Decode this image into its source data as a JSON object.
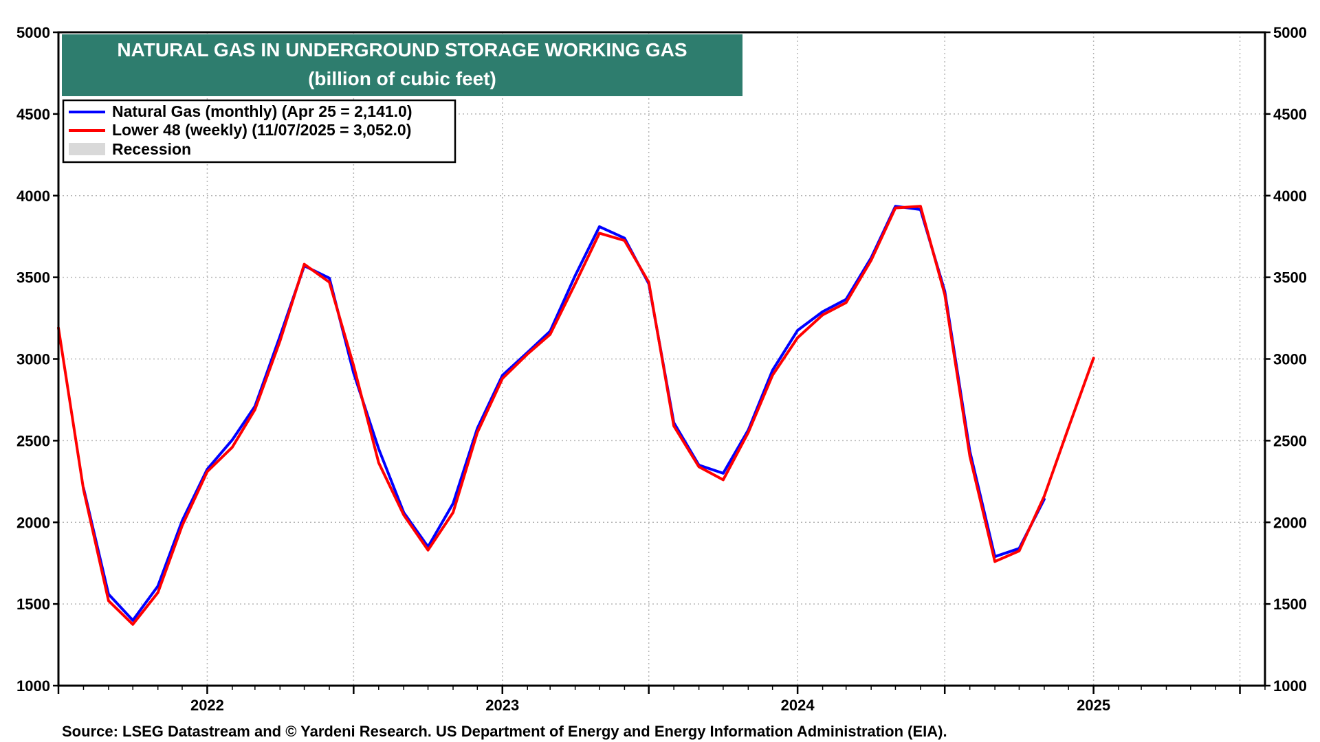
{
  "chart_data": {
    "type": "line",
    "title": "NATURAL GAS IN UNDERGROUND STORAGE WORKING GAS",
    "subtitle": "(billion of cubic feet)",
    "ylim": [
      1000,
      5000
    ],
    "y_ticks": [
      1000,
      1500,
      2000,
      2500,
      3000,
      3500,
      4000,
      4500,
      5000
    ],
    "y_tick_labels": [
      "1000",
      "1500",
      "2000",
      "2500",
      "3000",
      "3500",
      "4000",
      "4500",
      "5000"
    ],
    "xlim": [
      "2021-07-01",
      "2025-08-01"
    ],
    "x_year_labels": [
      {
        "label": "2022",
        "date": "2022-01-01"
      },
      {
        "label": "2023",
        "date": "2023-01-01"
      },
      {
        "label": "2024",
        "date": "2024-01-01"
      },
      {
        "label": "2025",
        "date": "2025-01-01"
      }
    ],
    "x_grid_dates": [
      "2021-07-01",
      "2022-01-01",
      "2022-07-01",
      "2023-01-01",
      "2023-07-01",
      "2024-01-01",
      "2024-07-01",
      "2025-01-01",
      "2025-07-01"
    ],
    "grid": true,
    "legend_position": "top-left",
    "series": [
      {
        "name": "Natural Gas (monthly) (Apr 25 = 2,141.0)",
        "color": "#0000ff",
        "points": [
          [
            "2021-08-01",
            2210
          ],
          [
            "2021-09-01",
            1560
          ],
          [
            "2021-10-01",
            1400
          ],
          [
            "2021-11-01",
            1610
          ],
          [
            "2021-12-01",
            2010
          ],
          [
            "2022-01-01",
            2325
          ],
          [
            "2022-02-01",
            2505
          ],
          [
            "2022-03-01",
            2710
          ],
          [
            "2022-04-01",
            3140
          ],
          [
            "2022-05-01",
            3570
          ],
          [
            "2022-06-01",
            3495
          ],
          [
            "2022-07-01",
            2915
          ],
          [
            "2022-08-01",
            2450
          ],
          [
            "2022-09-01",
            2060
          ],
          [
            "2022-10-01",
            1850
          ],
          [
            "2022-11-01",
            2115
          ],
          [
            "2022-12-01",
            2575
          ],
          [
            "2023-01-01",
            2900
          ],
          [
            "2023-02-01",
            3040
          ],
          [
            "2023-03-01",
            3170
          ],
          [
            "2023-04-01",
            3510
          ],
          [
            "2023-05-01",
            3810
          ],
          [
            "2023-06-01",
            3740
          ],
          [
            "2023-07-01",
            3460
          ],
          [
            "2023-08-01",
            2610
          ],
          [
            "2023-09-01",
            2350
          ],
          [
            "2023-10-01",
            2300
          ],
          [
            "2023-11-01",
            2565
          ],
          [
            "2023-12-01",
            2930
          ],
          [
            "2024-01-01",
            3175
          ],
          [
            "2024-02-01",
            3290
          ],
          [
            "2024-03-01",
            3365
          ],
          [
            "2024-04-01",
            3620
          ],
          [
            "2024-05-01",
            3935
          ],
          [
            "2024-06-01",
            3915
          ],
          [
            "2024-07-01",
            3415
          ],
          [
            "2024-08-01",
            2435
          ],
          [
            "2024-09-01",
            1790
          ],
          [
            "2024-10-01",
            1840
          ],
          [
            "2024-11-01",
            2141
          ]
        ]
      },
      {
        "name": "Lower 48 (weekly) (11/07/2025 = 3,052.0)",
        "color": "#ff0000",
        "points": [
          [
            "2021-07-01",
            3190
          ],
          [
            "2021-08-01",
            2200
          ],
          [
            "2021-09-01",
            1520
          ],
          [
            "2021-10-01",
            1375
          ],
          [
            "2021-11-01",
            1570
          ],
          [
            "2021-12-01",
            1980
          ],
          [
            "2022-01-01",
            2310
          ],
          [
            "2022-02-01",
            2460
          ],
          [
            "2022-03-01",
            2690
          ],
          [
            "2022-04-01",
            3110
          ],
          [
            "2022-05-01",
            3580
          ],
          [
            "2022-06-01",
            3470
          ],
          [
            "2022-07-01",
            2960
          ],
          [
            "2022-08-01",
            2365
          ],
          [
            "2022-09-01",
            2045
          ],
          [
            "2022-10-01",
            1830
          ],
          [
            "2022-11-01",
            2060
          ],
          [
            "2022-12-01",
            2550
          ],
          [
            "2023-01-01",
            2880
          ],
          [
            "2023-02-01",
            3030
          ],
          [
            "2023-03-01",
            3150
          ],
          [
            "2023-04-01",
            3460
          ],
          [
            "2023-05-01",
            3770
          ],
          [
            "2023-06-01",
            3725
          ],
          [
            "2023-07-01",
            3470
          ],
          [
            "2023-08-01",
            2590
          ],
          [
            "2023-09-01",
            2340
          ],
          [
            "2023-10-01",
            2260
          ],
          [
            "2023-11-01",
            2550
          ],
          [
            "2023-12-01",
            2900
          ],
          [
            "2024-01-01",
            3130
          ],
          [
            "2024-02-01",
            3270
          ],
          [
            "2024-03-01",
            3345
          ],
          [
            "2024-04-01",
            3605
          ],
          [
            "2024-05-01",
            3925
          ],
          [
            "2024-06-01",
            3935
          ],
          [
            "2024-07-01",
            3395
          ],
          [
            "2024-08-01",
            2405
          ],
          [
            "2024-09-01",
            1760
          ],
          [
            "2024-10-01",
            1825
          ],
          [
            "2024-11-01",
            2160
          ],
          [
            "2024-12-01",
            2580
          ],
          [
            "2025-01-01",
            3005
          ]
        ]
      }
    ],
    "legend": [
      {
        "label": "Natural Gas (monthly) (Apr 25 = 2,141.0)",
        "color": "#0000ff",
        "kind": "line"
      },
      {
        "label": "Lower 48 (weekly) (11/07/2025 = 3,052.0)",
        "color": "#ff0000",
        "kind": "line"
      },
      {
        "label": "Recession",
        "color": "#d9d9d9",
        "kind": "swatch"
      }
    ],
    "source": "Source: LSEG Datastream and © Yardeni Research. US  Department of Energy and Energy Information Administration (EIA).",
    "title_box_color": "#2e7d6e"
  }
}
